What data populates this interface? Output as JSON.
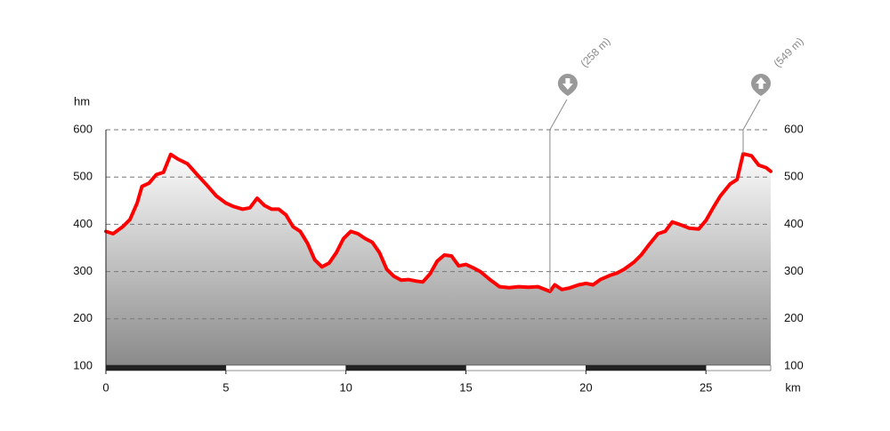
{
  "chart_data": {
    "type": "line",
    "y_label": "hm",
    "x_label": "km",
    "xlim": [
      0,
      27.7
    ],
    "ylim": [
      100,
      600
    ],
    "xticks": [
      0,
      5,
      10,
      15,
      20,
      25
    ],
    "yticks": [
      100,
      200,
      300,
      400,
      500,
      600
    ],
    "grid": true,
    "x": [
      0,
      0.3,
      0.7,
      1.0,
      1.3,
      1.5,
      1.8,
      2.1,
      2.4,
      2.7,
      3.0,
      3.4,
      3.8,
      4.2,
      4.6,
      5.0,
      5.3,
      5.7,
      6.0,
      6.3,
      6.6,
      6.9,
      7.2,
      7.5,
      7.8,
      8.1,
      8.4,
      8.7,
      9.0,
      9.3,
      9.6,
      9.9,
      10.2,
      10.5,
      10.8,
      11.1,
      11.4,
      11.7,
      12.0,
      12.3,
      12.6,
      12.9,
      13.2,
      13.5,
      13.8,
      14.1,
      14.4,
      14.7,
      15.0,
      15.3,
      15.6,
      16.0,
      16.4,
      16.8,
      17.2,
      17.6,
      18.0,
      18.5,
      18.7,
      19.0,
      19.3,
      19.7,
      20.0,
      20.3,
      20.6,
      21.0,
      21.3,
      21.6,
      22.0,
      22.3,
      22.6,
      23.0,
      23.3,
      23.6,
      24.0,
      24.3,
      24.7,
      25.0,
      25.3,
      25.6,
      26.0,
      26.3,
      26.55,
      26.9,
      27.2,
      27.5,
      27.7
    ],
    "series": [
      {
        "color": "#ff0000",
        "values": [
          385,
          380,
          395,
          410,
          445,
          480,
          487,
          505,
          510,
          548,
          538,
          528,
          505,
          483,
          460,
          445,
          438,
          432,
          435,
          455,
          440,
          432,
          432,
          420,
          395,
          385,
          360,
          325,
          310,
          318,
          340,
          370,
          385,
          380,
          370,
          362,
          340,
          305,
          290,
          282,
          283,
          280,
          278,
          295,
          322,
          335,
          333,
          312,
          315,
          308,
          300,
          283,
          268,
          266,
          268,
          267,
          268,
          258,
          272,
          262,
          265,
          272,
          275,
          272,
          283,
          292,
          297,
          305,
          320,
          335,
          355,
          380,
          385,
          405,
          398,
          392,
          390,
          408,
          435,
          460,
          485,
          495,
          549,
          545,
          525,
          520,
          512
        ]
      }
    ],
    "annotations": [
      {
        "label": "(258 m)",
        "x": 18.5,
        "kind": "min"
      },
      {
        "label": "(549 m)",
        "x": 26.55,
        "kind": "max"
      }
    ]
  }
}
